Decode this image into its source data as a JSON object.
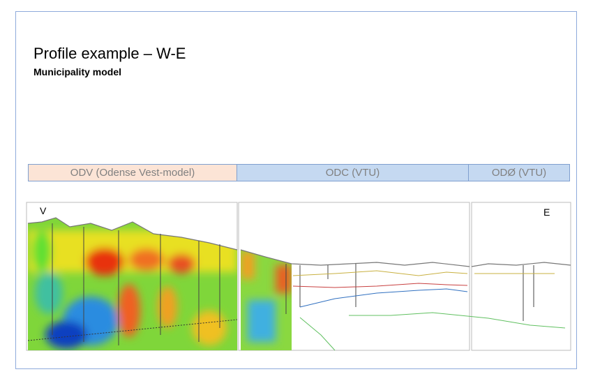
{
  "slide": {
    "title": "Profile example – W-E",
    "subtitle": "Municipality  model",
    "bands": [
      "ODV (Odense  Vest-model)",
      "ODC (VTU)",
      "ODØ (VTU)"
    ],
    "panel_labels": [
      "V",
      "E"
    ]
  }
}
